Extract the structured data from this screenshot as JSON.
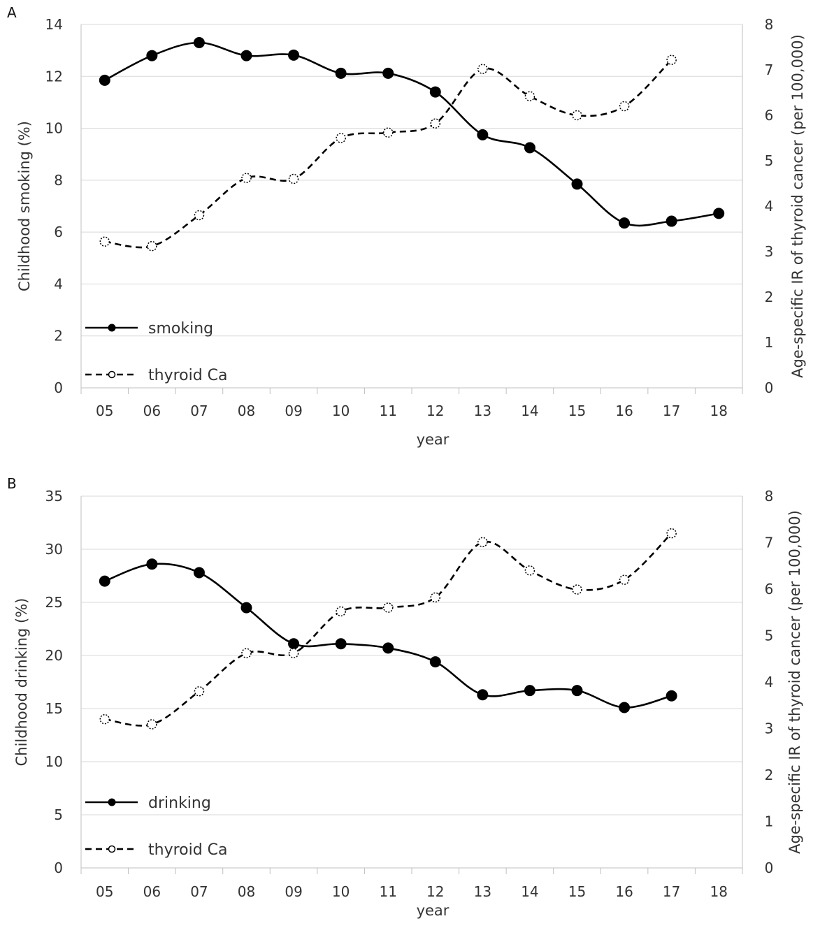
{
  "chart_data": [
    {
      "type": "line",
      "panel_label": "A",
      "categories": [
        "05",
        "06",
        "07",
        "08",
        "09",
        "10",
        "11",
        "12",
        "13",
        "14",
        "15",
        "16",
        "17",
        "18"
      ],
      "xlabel": "year",
      "ylabel": "Childhood smoking (%)",
      "y2label": "Age-specific IR of thyroid cancer (per 100,000)",
      "ylim": [
        0,
        14
      ],
      "yticks": [
        0,
        2,
        4,
        6,
        8,
        10,
        12,
        14
      ],
      "y2lim": [
        0,
        8
      ],
      "y2ticks": [
        0,
        1,
        2,
        3,
        4,
        5,
        6,
        7,
        8
      ],
      "grid": true,
      "legend_position": "bottom-left",
      "series": [
        {
          "name": "smoking",
          "axis": "left",
          "style": "solid",
          "marker": "filled-circle",
          "values": [
            11.85,
            12.8,
            13.3,
            12.8,
            12.82,
            12.12,
            12.12,
            11.4,
            9.75,
            9.25,
            7.85,
            6.35,
            6.42,
            6.72
          ]
        },
        {
          "name": "thyroid Ca",
          "axis": "right",
          "style": "dashed",
          "marker": "open-circle",
          "values": [
            3.22,
            3.12,
            3.8,
            4.62,
            4.6,
            5.5,
            5.62,
            5.82,
            7.02,
            6.42,
            6.0,
            6.2,
            7.22,
            null
          ]
        }
      ]
    },
    {
      "type": "line",
      "panel_label": "B",
      "categories": [
        "05",
        "06",
        "07",
        "08",
        "09",
        "10",
        "11",
        "12",
        "13",
        "14",
        "15",
        "16",
        "17",
        "18"
      ],
      "xlabel": "year",
      "ylabel": "Childhood drinking (%)",
      "y2label": "Age-specific IR of thyroid cancer (per 100,000)",
      "ylim": [
        0,
        35
      ],
      "yticks": [
        0,
        5,
        10,
        15,
        20,
        25,
        30,
        35
      ],
      "y2lim": [
        0,
        8
      ],
      "y2ticks": [
        0,
        1,
        2,
        3,
        4,
        5,
        6,
        7,
        8
      ],
      "grid": true,
      "legend_position": "bottom-left",
      "series": [
        {
          "name": "drinking",
          "axis": "left",
          "style": "solid",
          "marker": "filled-circle",
          "values": [
            27.0,
            28.6,
            27.8,
            24.5,
            21.1,
            21.1,
            20.7,
            19.4,
            16.3,
            16.7,
            16.7,
            15.1,
            16.2,
            null
          ]
        },
        {
          "name": "thyroid Ca",
          "axis": "right",
          "style": "dashed",
          "marker": "open-circle",
          "values": [
            3.2,
            3.09,
            3.8,
            4.62,
            4.62,
            5.52,
            5.6,
            5.82,
            7.01,
            6.4,
            5.99,
            6.2,
            7.2,
            null
          ]
        }
      ]
    }
  ]
}
